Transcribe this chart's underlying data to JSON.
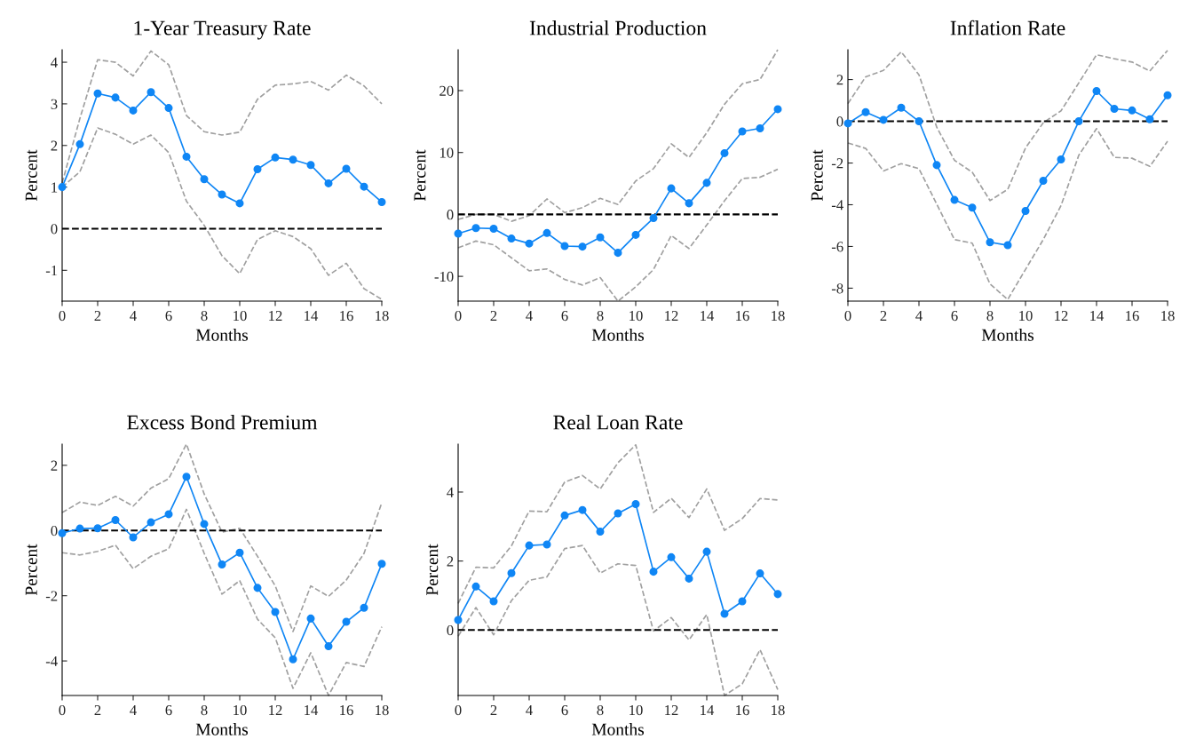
{
  "chart_data": [
    {
      "type": "line",
      "title": "1-Year Treasury Rate",
      "xlabel": "Months",
      "ylabel": "Percent",
      "x": [
        0,
        1,
        2,
        3,
        4,
        5,
        6,
        7,
        8,
        9,
        10,
        11,
        12,
        13,
        14,
        15,
        16,
        17,
        18
      ],
      "xlim": [
        0,
        18
      ],
      "xticks": [
        0,
        2,
        4,
        6,
        8,
        10,
        12,
        14,
        16,
        18
      ],
      "ylim": [
        -1.74,
        4.3
      ],
      "yticks": [
        {
          "value": -1,
          "label": "-1"
        },
        0,
        1,
        2,
        3,
        4
      ],
      "grid": false,
      "ref_lines": [
        {
          "axis": "y",
          "value": 0,
          "color": "#000000",
          "line_style": "dashed"
        }
      ],
      "series": [
        {
          "color": "#0f86f5",
          "marker": "circle",
          "line_style": "solid",
          "values": [
            1.0,
            2.03,
            3.25,
            3.15,
            2.84,
            3.28,
            2.9,
            1.73,
            1.19,
            0.82,
            0.61,
            1.43,
            1.71,
            1.66,
            1.53,
            1.09,
            1.44,
            1.01,
            0.64
          ]
        },
        {
          "color": "#a0a0a0",
          "marker": "none",
          "line_style": "dashed",
          "values": [
            1.1,
            2.65,
            4.06,
            4.0,
            3.67,
            4.27,
            3.94,
            2.72,
            2.33,
            2.25,
            2.32,
            3.11,
            3.45,
            3.48,
            3.54,
            3.33,
            3.69,
            3.43,
            3.0
          ]
        },
        {
          "color": "#a0a0a0",
          "marker": "none",
          "line_style": "dashed",
          "values": [
            1.0,
            1.37,
            2.42,
            2.27,
            2.03,
            2.25,
            1.83,
            0.66,
            0.08,
            -0.65,
            -1.08,
            -0.26,
            -0.05,
            -0.19,
            -0.48,
            -1.12,
            -0.83,
            -1.44,
            -1.7
          ]
        }
      ]
    },
    {
      "type": "line",
      "title": "Industrial Production",
      "xlabel": "Months",
      "ylabel": "Percent",
      "x": [
        0,
        1,
        2,
        3,
        4,
        5,
        6,
        7,
        8,
        9,
        10,
        11,
        12,
        13,
        14,
        15,
        16,
        17,
        18
      ],
      "xlim": [
        0,
        18
      ],
      "xticks": [
        0,
        2,
        4,
        6,
        8,
        10,
        12,
        14,
        16,
        18
      ],
      "ylim": [
        -14.0,
        26.6
      ],
      "yticks": [
        {
          "value": -10,
          "label": "-10"
        },
        0,
        10,
        20
      ],
      "grid": false,
      "ref_lines": [
        {
          "axis": "y",
          "value": 0,
          "color": "#000000",
          "line_style": "dashed"
        }
      ],
      "series": [
        {
          "color": "#0f86f5",
          "marker": "circle",
          "line_style": "solid",
          "values": [
            -3.1,
            -2.2,
            -2.3,
            -3.9,
            -4.7,
            -3.0,
            -5.1,
            -5.2,
            -3.7,
            -6.2,
            -3.3,
            -0.6,
            4.2,
            1.8,
            5.1,
            9.9,
            13.4,
            13.9,
            17.0
          ]
        },
        {
          "color": "#a0a0a0",
          "marker": "none",
          "line_style": "dashed",
          "values": [
            -0.8,
            0,
            0,
            -1.1,
            -0.2,
            2.5,
            0.3,
            1.1,
            2.6,
            1.6,
            5.4,
            7.4,
            11.4,
            9.2,
            13.2,
            17.8,
            21.1,
            21.8,
            26.6
          ]
        },
        {
          "color": "#a0a0a0",
          "marker": "none",
          "line_style": "dashed",
          "values": [
            -5.4,
            -4.3,
            -4.9,
            -7.0,
            -9.1,
            -8.8,
            -10.5,
            -11.4,
            -10.2,
            -14.0,
            -11.7,
            -8.9,
            -3.4,
            -5.5,
            -1.7,
            2.2,
            5.8,
            6.0,
            7.3
          ]
        }
      ]
    },
    {
      "type": "line",
      "title": "Inflation Rate",
      "xlabel": "Months",
      "ylabel": "Percent",
      "x": [
        0,
        1,
        2,
        3,
        4,
        5,
        6,
        7,
        8,
        9,
        10,
        11,
        12,
        13,
        14,
        15,
        16,
        17,
        18
      ],
      "xlim": [
        0,
        18
      ],
      "xticks": [
        0,
        2,
        4,
        6,
        8,
        10,
        12,
        14,
        16,
        18
      ],
      "ylim": [
        -8.62,
        3.43
      ],
      "yticks": [
        {
          "value": -8,
          "label": "-8"
        },
        {
          "value": -6,
          "label": "-6"
        },
        {
          "value": -4,
          "label": "-4"
        },
        {
          "value": -2,
          "label": "-2"
        },
        0,
        2
      ],
      "grid": false,
      "ref_lines": [
        {
          "axis": "y",
          "value": 0,
          "color": "#000000",
          "line_style": "dashed"
        }
      ],
      "series": [
        {
          "color": "#0f86f5",
          "marker": "circle",
          "line_style": "solid",
          "values": [
            -0.1,
            0.44,
            0.07,
            0.65,
            0,
            -2.1,
            -3.77,
            -4.14,
            -5.8,
            -5.94,
            -4.3,
            -2.85,
            -1.83,
            0,
            1.45,
            0.6,
            0.52,
            0.1,
            1.25
          ]
        },
        {
          "color": "#a0a0a0",
          "marker": "none",
          "line_style": "dashed",
          "values": [
            0.85,
            2.13,
            2.44,
            3.33,
            2.23,
            -0.28,
            -1.87,
            -2.44,
            -3.8,
            -3.26,
            -1.28,
            -0.07,
            0.5,
            1.84,
            3.19,
            3.0,
            2.84,
            2.41,
            3.4
          ]
        },
        {
          "color": "#a0a0a0",
          "marker": "none",
          "line_style": "dashed",
          "values": [
            -1.04,
            -1.3,
            -2.38,
            -2.03,
            -2.27,
            -3.97,
            -5.67,
            -5.84,
            -7.8,
            -8.54,
            -7.1,
            -5.67,
            -4.04,
            -1.63,
            -0.35,
            -1.73,
            -1.77,
            -2.16,
            -0.96
          ]
        }
      ]
    },
    {
      "type": "line",
      "title": "Excess Bond Premium",
      "xlabel": "Months",
      "ylabel": "Percent",
      "x": [
        0,
        1,
        2,
        3,
        4,
        5,
        6,
        7,
        8,
        9,
        10,
        11,
        12,
        13,
        14,
        15,
        16,
        17,
        18
      ],
      "xlim": [
        0,
        18
      ],
      "xticks": [
        0,
        2,
        4,
        6,
        8,
        10,
        12,
        14,
        16,
        18
      ],
      "ylim": [
        -5.06,
        2.65
      ],
      "yticks": [
        {
          "value": -4,
          "label": "-4"
        },
        {
          "value": -2,
          "label": "-2"
        },
        0,
        2
      ],
      "grid": false,
      "ref_lines": [
        {
          "axis": "y",
          "value": 0,
          "color": "#000000",
          "line_style": "dashed"
        }
      ],
      "series": [
        {
          "color": "#0f86f5",
          "marker": "circle",
          "line_style": "solid",
          "values": [
            -0.08,
            0.06,
            0.07,
            0.32,
            -0.21,
            0.25,
            0.5,
            1.65,
            0.2,
            -1.04,
            -0.68,
            -1.76,
            -2.5,
            -3.95,
            -2.7,
            -3.55,
            -2.8,
            -2.37,
            -1.02
          ]
        },
        {
          "color": "#a0a0a0",
          "marker": "none",
          "line_style": "dashed",
          "values": [
            0.55,
            0.87,
            0.77,
            1.05,
            0.75,
            1.3,
            1.59,
            2.65,
            1.12,
            -0.05,
            0.07,
            -0.79,
            -1.7,
            -3.1,
            -1.7,
            -2.02,
            -1.52,
            -0.7,
            0.85
          ]
        },
        {
          "color": "#a0a0a0",
          "marker": "none",
          "line_style": "dashed",
          "values": [
            -0.68,
            -0.75,
            -0.64,
            -0.45,
            -1.17,
            -0.79,
            -0.56,
            0.65,
            -0.7,
            -1.95,
            -1.54,
            -2.72,
            -3.29,
            -4.84,
            -3.75,
            -5.06,
            -4.05,
            -4.17,
            -2.95
          ]
        }
      ]
    },
    {
      "type": "line",
      "title": "Real Loan Rate",
      "xlabel": "Months",
      "ylabel": "Percent",
      "x": [
        0,
        1,
        2,
        3,
        4,
        5,
        6,
        7,
        8,
        9,
        10,
        11,
        12,
        13,
        14,
        15,
        16,
        17,
        18
      ],
      "xlim": [
        0,
        18
      ],
      "xticks": [
        0,
        2,
        4,
        6,
        8,
        10,
        12,
        14,
        16,
        18
      ],
      "ylim": [
        -1.9,
        5.39
      ],
      "yticks": [
        0,
        2,
        4
      ],
      "grid": false,
      "ref_lines": [
        {
          "axis": "y",
          "value": 0,
          "color": "#000000",
          "line_style": "dashed"
        }
      ],
      "series": [
        {
          "color": "#0f86f5",
          "marker": "circle",
          "line_style": "solid",
          "values": [
            0.29,
            1.26,
            0.83,
            1.65,
            2.45,
            2.48,
            3.32,
            3.48,
            2.85,
            3.38,
            3.65,
            1.69,
            2.11,
            1.49,
            2.27,
            0.47,
            0.83,
            1.64,
            1.04
          ]
        },
        {
          "color": "#a0a0a0",
          "marker": "none",
          "line_style": "dashed",
          "values": [
            0.77,
            1.82,
            1.8,
            2.44,
            3.45,
            3.43,
            4.29,
            4.48,
            4.09,
            4.85,
            5.37,
            3.41,
            3.82,
            3.26,
            4.09,
            2.89,
            3.23,
            3.81,
            3.77
          ]
        },
        {
          "color": "#a0a0a0",
          "marker": "none",
          "line_style": "dashed",
          "values": [
            -0.18,
            0.65,
            -0.14,
            0.85,
            1.44,
            1.54,
            2.36,
            2.45,
            1.65,
            1.92,
            1.87,
            -0.03,
            0.36,
            -0.29,
            0.45,
            -1.9,
            -1.56,
            -0.57,
            -1.73
          ]
        }
      ]
    }
  ]
}
